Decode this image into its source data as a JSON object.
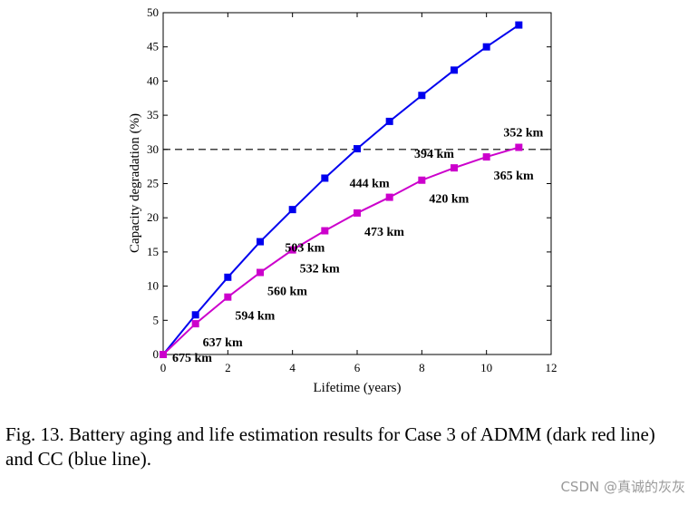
{
  "chart_data": {
    "type": "line",
    "xlabel": "Lifetime (years)",
    "ylabel": "Capacity degradation (%)",
    "xlim": [
      0,
      12
    ],
    "ylim": [
      0,
      50
    ],
    "xticks": [
      "0",
      "2",
      "4",
      "6",
      "8",
      "10",
      "12"
    ],
    "yticks": [
      "0",
      "5",
      "10",
      "15",
      "20",
      "25",
      "30",
      "35",
      "40",
      "45",
      "50"
    ],
    "grid": false,
    "reference_line": {
      "y": 30,
      "style": "dashed",
      "color": "#000000"
    },
    "series": [
      {
        "name": "CC",
        "color": "#0000ee",
        "x": [
          0,
          1,
          2,
          3,
          4,
          5,
          6,
          7,
          8,
          9,
          10,
          11
        ],
        "y": [
          0,
          5.8,
          11.3,
          16.5,
          21.2,
          25.8,
          30.1,
          34.1,
          37.9,
          41.6,
          45.0,
          48.2
        ]
      },
      {
        "name": "ADMM",
        "color": "#cc00cc",
        "x": [
          0,
          1,
          2,
          3,
          4,
          5,
          6,
          7,
          8,
          9,
          10,
          11
        ],
        "y": [
          0,
          4.5,
          8.4,
          12.0,
          15.3,
          18.1,
          20.7,
          23.0,
          25.5,
          27.3,
          28.9,
          30.3
        ]
      }
    ],
    "annotations": [
      {
        "text": "675 km",
        "x": 0,
        "y": 0
      },
      {
        "text": "637 km",
        "x": 1,
        "y": 4.5
      },
      {
        "text": "594 km",
        "x": 2,
        "y": 8.4
      },
      {
        "text": "560 km",
        "x": 3,
        "y": 12.0
      },
      {
        "text": "532 km",
        "x": 4,
        "y": 15.3
      },
      {
        "text": "503 km",
        "x": 5,
        "y": 18.1
      },
      {
        "text": "473 km",
        "x": 6,
        "y": 20.7
      },
      {
        "text": "444 km",
        "x": 7,
        "y": 23.0
      },
      {
        "text": "420 km",
        "x": 8,
        "y": 25.5
      },
      {
        "text": "394 km",
        "x": 9,
        "y": 27.3
      },
      {
        "text": "365 km",
        "x": 10,
        "y": 28.9
      },
      {
        "text": "352 km",
        "x": 11,
        "y": 30.3
      }
    ]
  },
  "caption": {
    "text": "Fig. 13.   Battery aging and life estimation results for Case 3 of ADMM (dark red line) and CC (blue line)."
  },
  "watermark": "CSDN @真诚的灰灰"
}
